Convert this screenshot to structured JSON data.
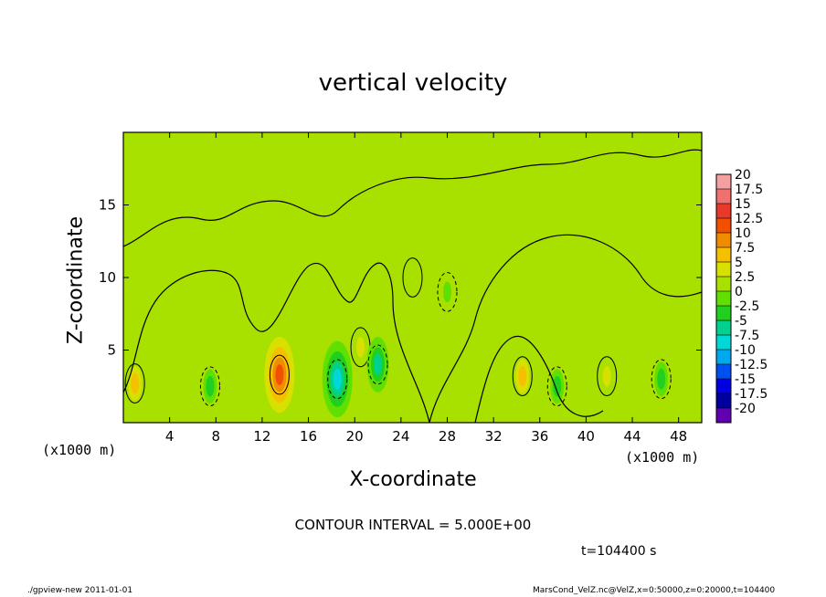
{
  "chart_data": {
    "type": "heatmap",
    "title": "vertical velocity",
    "xlabel": "X-coordinate",
    "ylabel": "Z-coordinate",
    "x_unit_label": "(x1000 m)",
    "x_ticks": [
      4,
      8,
      12,
      16,
      20,
      24,
      28,
      32,
      36,
      40,
      44,
      48
    ],
    "y_ticks": [
      5,
      10,
      15
    ],
    "xlim": [
      0,
      50
    ],
    "ylim": [
      0,
      20
    ],
    "colorbar": {
      "levels": [
        "20",
        "17.5",
        "15",
        "12.5",
        "10",
        "7.5",
        "5",
        "2.5",
        "0",
        "-2.5",
        "-5",
        "-7.5",
        "-10",
        "-12.5",
        "-15",
        "-17.5",
        "-20"
      ],
      "colors": [
        "#f5a0a0",
        "#f07070",
        "#e83a2a",
        "#f05000",
        "#f08c00",
        "#f5c000",
        "#d8e000",
        "#a8e000",
        "#60e000",
        "#20d020",
        "#00d090",
        "#00d8d8",
        "#00a8f0",
        "#0050f0",
        "#0000e0",
        "#0000a0",
        "#6000b0"
      ]
    },
    "contour_interval_text": "CONTOUR INTERVAL = 5.000E+00",
    "features": [
      {
        "x": 1.0,
        "z": 2.7,
        "w": 6.5
      },
      {
        "x": 13.5,
        "z": 3.3,
        "w": 11.0
      },
      {
        "x": 34.5,
        "z": 3.2,
        "w": 5.5
      },
      {
        "x": 41.8,
        "z": 3.2,
        "w": 5.0
      },
      {
        "x": 20.5,
        "z": 5.2,
        "w": 4.0
      },
      {
        "x": 18.5,
        "z": 3.0,
        "w": -9.0
      },
      {
        "x": 22.0,
        "z": 4.0,
        "w": -6.0
      },
      {
        "x": 7.5,
        "z": 2.5,
        "w": -4.0
      },
      {
        "x": 37.5,
        "z": 2.5,
        "w": -4.5
      },
      {
        "x": 46.5,
        "z": 3.0,
        "w": -3.5
      },
      {
        "x": 25.0,
        "z": 10.0,
        "w": 2.5
      },
      {
        "x": 28.0,
        "z": 9.0,
        "w": -2.5
      }
    ]
  },
  "time_label": "t=104400 s",
  "footer": {
    "left": "./gpview-new  2011-01-01",
    "right": "MarsCond_VelZ.nc@VelZ,x=0:50000,z=0:20000,t=104400"
  }
}
